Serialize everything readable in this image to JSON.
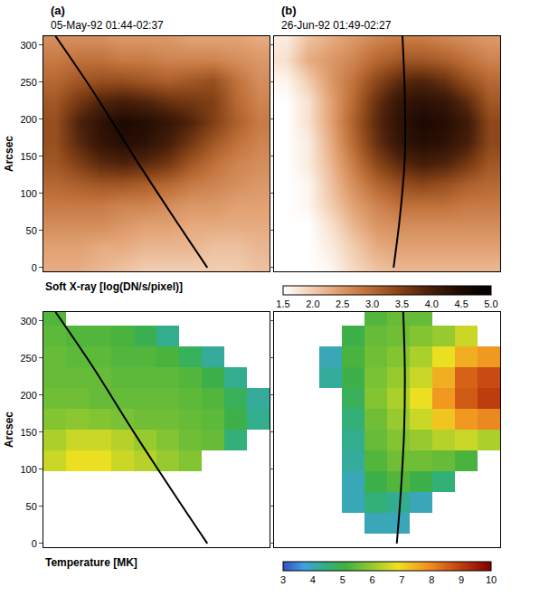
{
  "chart_data": [
    {
      "type": "heatmap",
      "y_label": "Arcsec",
      "xlim": [
        0,
        280
      ],
      "ylim": [
        -5,
        312
      ],
      "yticks": [
        0,
        50,
        100,
        150,
        200,
        250,
        300
      ],
      "x": [
        14,
        42,
        70,
        98,
        126,
        154,
        182,
        210,
        238,
        266
      ],
      "y": [
        0,
        28,
        56,
        84,
        112,
        140,
        168,
        196,
        224,
        252,
        280,
        308
      ],
      "colorbar": {
        "title": "Soft X-ray [log(DN/s/pixel)]",
        "range": [
          1.5,
          5
        ],
        "ticks": [
          1.5,
          {
            "value": 2,
            "label": "2.0"
          },
          2.5,
          {
            "value": 3,
            "label": "3.0"
          },
          3.5,
          {
            "value": 4,
            "label": "4.0"
          },
          4.5,
          {
            "value": 5,
            "label": "5.0"
          }
        ]
      },
      "panels": [
        {
          "label": "(a)",
          "title": "05-May-92 01:44-02:37",
          "tick_labels": "y",
          "z": [
            [
              2.3,
              2.3,
              2.2,
              2.1,
              2.0,
              2.0,
              2.0,
              2.0,
              2.0,
              2.1
            ],
            [
              2.4,
              2.4,
              2.3,
              2.3,
              2.2,
              2.2,
              2.2,
              2.1,
              2.1,
              2.2
            ],
            [
              2.6,
              2.6,
              2.6,
              2.5,
              2.4,
              2.4,
              2.3,
              2.3,
              2.3,
              2.3
            ],
            [
              2.8,
              2.8,
              2.8,
              2.7,
              2.7,
              2.6,
              2.5,
              2.5,
              2.4,
              2.4
            ],
            [
              3.0,
              3.1,
              3.2,
              3.2,
              3.1,
              3.0,
              2.8,
              2.7,
              2.6,
              2.5
            ],
            [
              3.2,
              3.5,
              3.8,
              3.9,
              3.8,
              3.6,
              3.2,
              2.9,
              2.7,
              2.6
            ],
            [
              3.3,
              3.8,
              4.2,
              4.4,
              4.3,
              4.0,
              3.6,
              3.2,
              2.9,
              2.7
            ],
            [
              3.3,
              3.9,
              4.3,
              4.5,
              4.4,
              4.2,
              3.9,
              3.5,
              3.1,
              2.8
            ],
            [
              3.2,
              3.6,
              3.9,
              4.0,
              3.9,
              3.7,
              3.6,
              3.5,
              3.0,
              2.7
            ],
            [
              3.0,
              3.2,
              3.3,
              3.3,
              3.2,
              3.1,
              3.2,
              3.3,
              2.9,
              2.6
            ],
            [
              2.8,
              2.9,
              2.9,
              2.8,
              2.8,
              2.7,
              2.7,
              2.7,
              2.6,
              2.5
            ],
            [
              2.6,
              2.6,
              2.6,
              2.5,
              2.5,
              2.5,
              2.4,
              2.4,
              2.4,
              2.3
            ]
          ],
          "limb": {
            "x": [
              15,
              60,
              112,
              160,
              203
            ],
            "y": [
              312,
              240,
              150,
              70,
              0
            ],
            "color": "#000000"
          }
        },
        {
          "label": "(b)",
          "title": "26-Jun-92 01:49-02:27",
          "tick_labels": false,
          "z": [
            [
              1.5,
              1.5,
              1.6,
              1.9,
              2.1,
              2.2,
              2.2,
              2.2,
              2.2,
              2.2
            ],
            [
              1.5,
              1.5,
              1.7,
              2.0,
              2.3,
              2.4,
              2.4,
              2.4,
              2.4,
              2.4
            ],
            [
              1.5,
              1.5,
              1.8,
              2.2,
              2.5,
              2.6,
              2.6,
              2.6,
              2.6,
              2.6
            ],
            [
              1.5,
              1.6,
              2.0,
              2.4,
              2.7,
              2.9,
              2.9,
              2.9,
              2.8,
              2.8
            ],
            [
              1.5,
              1.6,
              2.1,
              2.6,
              3.0,
              3.3,
              3.4,
              3.3,
              3.1,
              3.0
            ],
            [
              1.5,
              1.7,
              2.2,
              2.8,
              3.4,
              3.8,
              4.0,
              3.9,
              3.6,
              3.2
            ],
            [
              1.5,
              1.7,
              2.3,
              3.0,
              3.7,
              4.2,
              4.4,
              4.3,
              4.0,
              3.4
            ],
            [
              1.5,
              1.8,
              2.4,
              3.1,
              3.8,
              4.3,
              4.5,
              4.4,
              4.1,
              3.4
            ],
            [
              1.5,
              1.8,
              2.4,
              3.0,
              3.7,
              4.2,
              4.3,
              4.2,
              3.8,
              3.2
            ],
            [
              1.6,
              2.0,
              2.5,
              2.9,
              3.4,
              3.8,
              3.9,
              3.7,
              3.3,
              3.0
            ],
            [
              1.8,
              2.3,
              2.5,
              2.7,
              3.0,
              3.2,
              3.2,
              3.1,
              2.9,
              2.7
            ],
            [
              1.7,
              2.1,
              2.3,
              2.5,
              2.7,
              2.8,
              2.8,
              2.7,
              2.6,
              2.5
            ]
          ],
          "limb": {
            "x": [
              159,
              162,
              162,
              156,
              148
            ],
            "y": [
              312,
              230,
              150,
              70,
              0
            ],
            "color": "#000000"
          }
        }
      ]
    },
    {
      "type": "heatmap",
      "y_label": "Arcsec",
      "xlim": [
        0,
        280
      ],
      "ylim": [
        -5,
        312
      ],
      "yticks": [
        0,
        50,
        100,
        150,
        200,
        250,
        300
      ],
      "x": [
        14,
        42,
        70,
        98,
        126,
        154,
        182,
        210,
        238,
        266
      ],
      "y": [
        0,
        28,
        56,
        84,
        112,
        140,
        168,
        196,
        224,
        252,
        280,
        308
      ],
      "colorbar": {
        "title": "Temperature [MK]",
        "range": [
          3,
          10
        ],
        "ticks": [
          3,
          4,
          5,
          6,
          7,
          8,
          9,
          10
        ]
      },
      "panels": [
        {
          "tick_labels": "y",
          "z": [
            [
              null,
              null,
              null,
              null,
              null,
              null,
              null,
              null,
              null,
              null
            ],
            [
              null,
              null,
              null,
              null,
              null,
              null,
              null,
              null,
              null,
              null
            ],
            [
              null,
              null,
              null,
              null,
              null,
              null,
              null,
              null,
              null,
              null
            ],
            [
              null,
              null,
              null,
              null,
              null,
              null,
              null,
              null,
              null,
              null
            ],
            [
              6.5,
              6.8,
              6.8,
              6.5,
              6.3,
              6.0,
              5.8,
              null,
              null,
              null
            ],
            [
              6.2,
              6.5,
              6.5,
              6.3,
              6.0,
              5.8,
              5.6,
              5.5,
              4.5,
              null
            ],
            [
              5.8,
              5.9,
              5.8,
              5.7,
              5.6,
              5.6,
              5.5,
              5.4,
              5.0,
              4.3
            ],
            [
              5.6,
              5.6,
              5.5,
              5.5,
              5.5,
              5.5,
              5.4,
              5.3,
              4.8,
              4.2
            ],
            [
              5.5,
              5.5,
              5.5,
              5.4,
              5.4,
              5.4,
              5.3,
              5.0,
              4.3,
              null
            ],
            [
              5.5,
              5.4,
              5.4,
              5.3,
              5.3,
              5.2,
              4.8,
              4.2,
              null,
              null
            ],
            [
              5.4,
              5.3,
              5.3,
              5.2,
              4.9,
              4.3,
              null,
              null,
              null,
              null
            ],
            [
              5.3,
              null,
              null,
              null,
              null,
              null,
              null,
              null,
              null,
              null
            ]
          ],
          "limb": {
            "x": [
              15,
              60,
              112,
              160,
              203
            ],
            "y": [
              312,
              240,
              150,
              70,
              0
            ],
            "color": "#000000"
          }
        },
        {
          "tick_labels": false,
          "z": [
            [
              null,
              null,
              null,
              null,
              null,
              null,
              null,
              null,
              null,
              null
            ],
            [
              null,
              null,
              null,
              null,
              4.0,
              4.0,
              null,
              null,
              null,
              null
            ],
            [
              null,
              null,
              null,
              4.0,
              4.5,
              4.3,
              4.0,
              null,
              null,
              null
            ],
            [
              null,
              null,
              null,
              4.0,
              5.0,
              5.3,
              5.0,
              4.5,
              null,
              null
            ],
            [
              null,
              null,
              null,
              4.2,
              5.3,
              5.6,
              5.6,
              5.5,
              5.2,
              null
            ],
            [
              null,
              null,
              null,
              4.3,
              5.5,
              5.8,
              6.0,
              6.3,
              6.5,
              6.2
            ],
            [
              null,
              null,
              null,
              4.5,
              5.6,
              6.0,
              6.5,
              7.2,
              7.8,
              8.0
            ],
            [
              null,
              null,
              null,
              4.8,
              5.8,
              6.2,
              6.8,
              7.8,
              8.6,
              9.0
            ],
            [
              null,
              null,
              4.2,
              5.0,
              5.7,
              6.0,
              6.5,
              7.5,
              8.5,
              8.8
            ],
            [
              null,
              null,
              4.0,
              5.2,
              5.6,
              5.8,
              6.2,
              6.8,
              7.5,
              7.8
            ],
            [
              null,
              null,
              null,
              5.0,
              5.5,
              5.6,
              5.8,
              6.0,
              6.5,
              null
            ],
            [
              null,
              null,
              null,
              null,
              5.3,
              5.5,
              5.5,
              null,
              null,
              null
            ]
          ],
          "limb": {
            "x": [
              160,
              162,
              161,
              157,
              152
            ],
            "y": [
              312,
              230,
              150,
              70,
              0
            ],
            "color": "#000000"
          }
        }
      ]
    }
  ]
}
